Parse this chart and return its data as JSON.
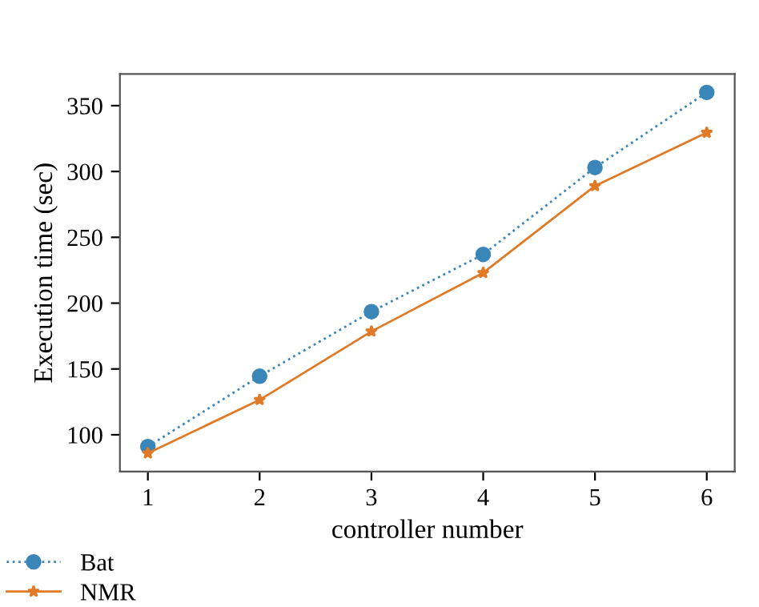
{
  "chart_data": {
    "type": "line",
    "xlabel": "controller number",
    "ylabel": "Execution time (sec)",
    "x": [
      1,
      2,
      3,
      4,
      5,
      6
    ],
    "series": [
      {
        "name": "Bat",
        "color": "#3a86b8",
        "values": [
          91,
          144.5,
          193.5,
          237,
          303,
          360
        ],
        "marker": "circle",
        "line_style": "dotted"
      },
      {
        "name": "NMR",
        "color": "#e07a26",
        "values": [
          86,
          126.5,
          178.5,
          223,
          289,
          329.5
        ],
        "marker": "star",
        "line_style": "solid"
      }
    ],
    "xlim": [
      0.75,
      6.25
    ],
    "xticks": [
      1,
      2,
      3,
      4,
      5,
      6
    ],
    "ylim": [
      72,
      374
    ],
    "yticks": [
      100,
      150,
      200,
      250,
      300,
      350
    ],
    "grid": false,
    "legend": "bottom left"
  }
}
